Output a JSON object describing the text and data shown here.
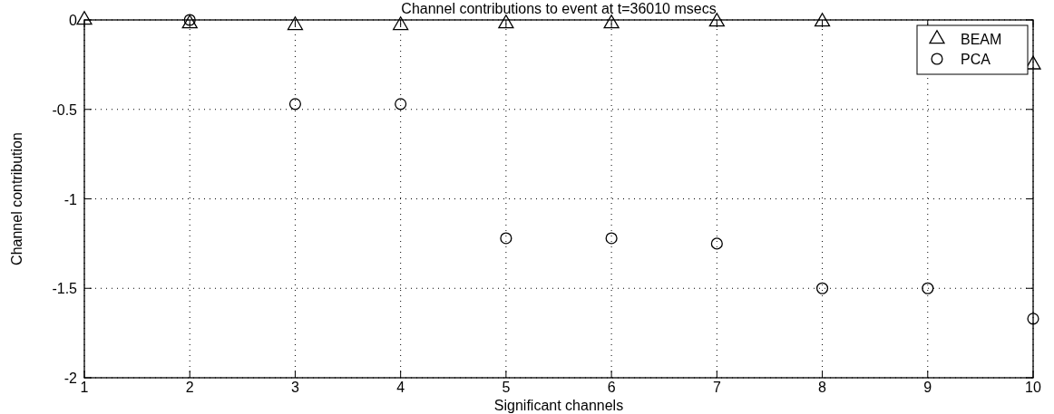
{
  "chart_data": {
    "type": "scatter",
    "title": "Channel contributions to event at t=36010 msecs",
    "xlabel": "Significant channels",
    "ylabel": "Channel contribution",
    "x": [
      1,
      2,
      3,
      4,
      5,
      6,
      7,
      8,
      9,
      10
    ],
    "series": [
      {
        "name": "BEAM",
        "color": "#000000",
        "marker": "triangle",
        "values": [
          0,
          -0.02,
          -0.03,
          -0.03,
          -0.02,
          -0.02,
          -0.01,
          -0.01,
          null,
          -0.25
        ]
      },
      {
        "name": "PCA",
        "color": "#000000",
        "marker": "circle",
        "values": [
          null,
          0,
          -0.47,
          -0.47,
          -1.22,
          -1.22,
          -1.25,
          -1.5,
          -1.5,
          -1.67
        ]
      }
    ],
    "xlim": [
      1,
      10
    ],
    "xticks": [
      1,
      2,
      3,
      4,
      5,
      6,
      7,
      8,
      9,
      10
    ],
    "ylim": [
      -2,
      0
    ],
    "yticks": [
      -2,
      -1.5,
      -1,
      -0.5,
      0
    ],
    "grid": true,
    "legend": "top right"
  }
}
